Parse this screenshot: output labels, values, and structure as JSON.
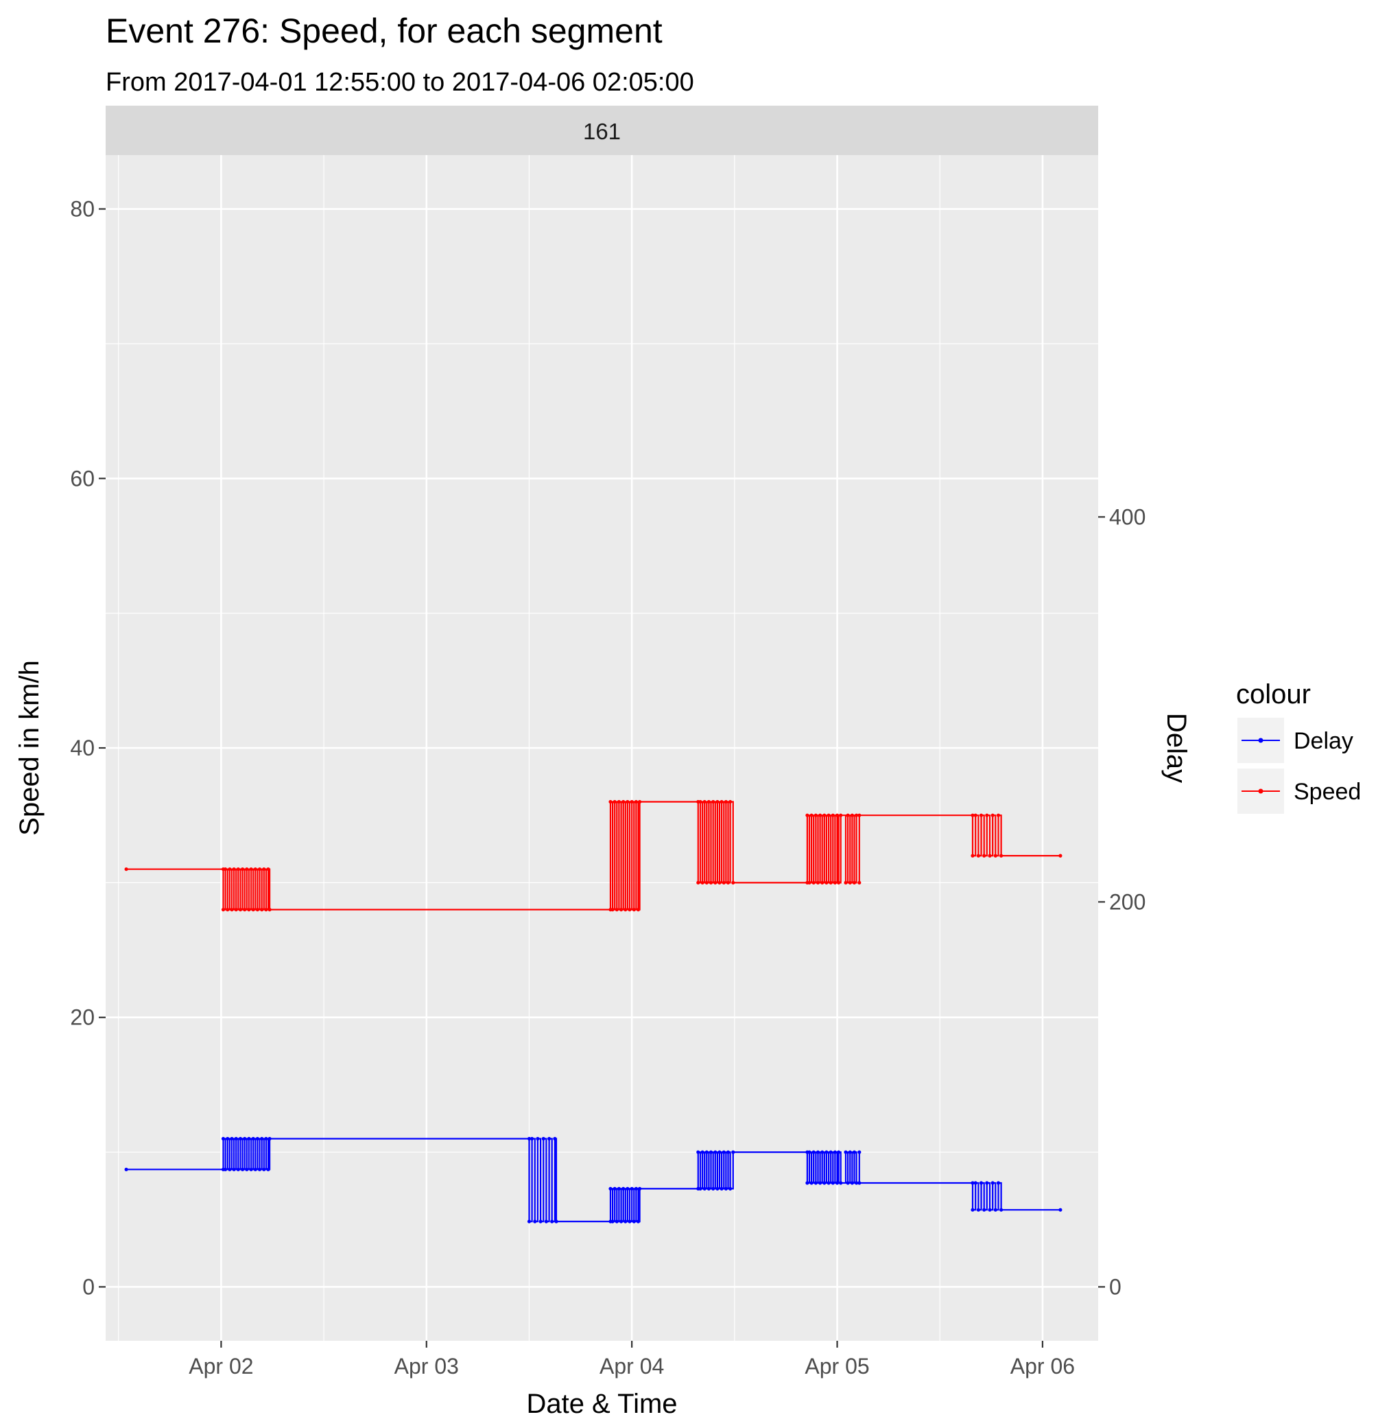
{
  "chart_data": {
    "type": "line",
    "step": true,
    "title": "Event 276: Speed, for each segment",
    "subtitle": "From 2017-04-01 12:55:00 to 2017-04-06 02:05:00",
    "facet_label": "161",
    "xlabel": "Date & Time",
    "ylabel": "Speed in km/h",
    "y2label": "Delay",
    "x_tick_labels": [
      "Apr 02",
      "Apr 03",
      "Apr 04",
      "Apr 05",
      "Apr 06"
    ],
    "x_ticks": [
      "2017-04-02 00:00",
      "2017-04-03 00:00",
      "2017-04-04 00:00",
      "2017-04-05 00:00",
      "2017-04-06 00:00"
    ],
    "xlim": [
      "2017-04-01 10:30",
      "2017-04-06 06:30"
    ],
    "ylim": [
      -4,
      84
    ],
    "y_ticks": [
      0,
      20,
      40,
      60,
      80
    ],
    "y2lim": [
      -28,
      588
    ],
    "y2_ticks": [
      0,
      200,
      400
    ],
    "grid": true,
    "legend": {
      "title": "colour",
      "position": "right",
      "entries": [
        "Delay",
        "Speed"
      ]
    },
    "colors": {
      "Delay": "#0000ff",
      "Speed": "#ff0000",
      "panel": "#ebebeb",
      "strip": "#d9d9d9",
      "grid": "#ffffff"
    },
    "series": [
      {
        "name": "Speed",
        "axis": "left",
        "points": [
          [
            "2017-04-01 12:55",
            31
          ],
          [
            "2017-04-02 00:15",
            31
          ],
          [
            "2017-04-02 00:15",
            28
          ],
          [
            "2017-04-02 00:30",
            31
          ],
          [
            "2017-04-02 00:45",
            28
          ],
          [
            "2017-04-02 01:00",
            31
          ],
          [
            "2017-04-02 01:15",
            28
          ],
          [
            "2017-04-02 01:30",
            31
          ],
          [
            "2017-04-02 01:45",
            28
          ],
          [
            "2017-04-02 02:00",
            31
          ],
          [
            "2017-04-02 02:15",
            28
          ],
          [
            "2017-04-02 02:30",
            31
          ],
          [
            "2017-04-02 02:45",
            28
          ],
          [
            "2017-04-02 03:00",
            31
          ],
          [
            "2017-04-02 03:15",
            28
          ],
          [
            "2017-04-02 03:30",
            31
          ],
          [
            "2017-04-02 03:45",
            28
          ],
          [
            "2017-04-02 04:00",
            31
          ],
          [
            "2017-04-02 04:15",
            28
          ],
          [
            "2017-04-02 04:30",
            31
          ],
          [
            "2017-04-02 04:45",
            28
          ],
          [
            "2017-04-02 05:00",
            31
          ],
          [
            "2017-04-02 05:15",
            28
          ],
          [
            "2017-04-02 05:30",
            31
          ],
          [
            "2017-04-02 05:40",
            28
          ],
          [
            "2017-04-03 21:30",
            28
          ],
          [
            "2017-04-03 21:30",
            36
          ],
          [
            "2017-04-03 21:45",
            28
          ],
          [
            "2017-04-03 22:00",
            36
          ],
          [
            "2017-04-03 22:15",
            28
          ],
          [
            "2017-04-03 22:30",
            36
          ],
          [
            "2017-04-03 22:45",
            28
          ],
          [
            "2017-04-03 23:00",
            36
          ],
          [
            "2017-04-03 23:15",
            28
          ],
          [
            "2017-04-03 23:30",
            36
          ],
          [
            "2017-04-03 23:45",
            28
          ],
          [
            "2017-04-04 00:00",
            36
          ],
          [
            "2017-04-04 00:15",
            28
          ],
          [
            "2017-04-04 00:30",
            36
          ],
          [
            "2017-04-04 00:45",
            28
          ],
          [
            "2017-04-04 00:55",
            36
          ],
          [
            "2017-04-04 07:45",
            36
          ],
          [
            "2017-04-04 07:45",
            30
          ],
          [
            "2017-04-04 08:00",
            36
          ],
          [
            "2017-04-04 08:15",
            30
          ],
          [
            "2017-04-04 08:30",
            36
          ],
          [
            "2017-04-04 08:45",
            30
          ],
          [
            "2017-04-04 09:00",
            36
          ],
          [
            "2017-04-04 09:15",
            30
          ],
          [
            "2017-04-04 09:30",
            36
          ],
          [
            "2017-04-04 09:45",
            30
          ],
          [
            "2017-04-04 10:00",
            36
          ],
          [
            "2017-04-04 10:15",
            30
          ],
          [
            "2017-04-04 10:30",
            36
          ],
          [
            "2017-04-04 10:45",
            30
          ],
          [
            "2017-04-04 11:00",
            36
          ],
          [
            "2017-04-04 11:15",
            30
          ],
          [
            "2017-04-04 11:30",
            36
          ],
          [
            "2017-04-04 11:50",
            30
          ],
          [
            "2017-04-04 20:30",
            30
          ],
          [
            "2017-04-04 20:30",
            35
          ],
          [
            "2017-04-04 20:45",
            30
          ],
          [
            "2017-04-04 21:00",
            35
          ],
          [
            "2017-04-04 21:15",
            30
          ],
          [
            "2017-04-04 21:30",
            35
          ],
          [
            "2017-04-04 21:45",
            30
          ],
          [
            "2017-04-04 22:00",
            35
          ],
          [
            "2017-04-04 22:15",
            30
          ],
          [
            "2017-04-04 22:30",
            35
          ],
          [
            "2017-04-04 22:45",
            30
          ],
          [
            "2017-04-04 23:00",
            35
          ],
          [
            "2017-04-04 23:15",
            30
          ],
          [
            "2017-04-04 23:30",
            35
          ],
          [
            "2017-04-04 23:45",
            30
          ],
          [
            "2017-04-05 00:00",
            35
          ],
          [
            "2017-04-05 00:10",
            30
          ],
          [
            "2017-04-05 00:25",
            35
          ],
          [
            "2017-04-05 01:00",
            30
          ],
          [
            "2017-04-05 01:15",
            35
          ],
          [
            "2017-04-05 01:30",
            30
          ],
          [
            "2017-04-05 01:45",
            35
          ],
          [
            "2017-04-05 02:00",
            30
          ],
          [
            "2017-04-05 02:15",
            35
          ],
          [
            "2017-04-05 02:35",
            30
          ],
          [
            "2017-04-05 02:35",
            35
          ],
          [
            "2017-04-05 15:50",
            35
          ],
          [
            "2017-04-05 15:50",
            32
          ],
          [
            "2017-04-05 16:10",
            35
          ],
          [
            "2017-04-05 16:30",
            32
          ],
          [
            "2017-04-05 16:50",
            35
          ],
          [
            "2017-04-05 17:10",
            32
          ],
          [
            "2017-04-05 17:30",
            35
          ],
          [
            "2017-04-05 17:50",
            32
          ],
          [
            "2017-04-05 18:10",
            35
          ],
          [
            "2017-04-05 18:30",
            32
          ],
          [
            "2017-04-05 18:50",
            35
          ],
          [
            "2017-04-05 19:10",
            32
          ],
          [
            "2017-04-06 02:05",
            32
          ]
        ]
      },
      {
        "name": "Delay",
        "axis": "right",
        "points": [
          [
            "2017-04-01 12:55",
            61
          ],
          [
            "2017-04-02 00:15",
            61
          ],
          [
            "2017-04-02 00:15",
            77
          ],
          [
            "2017-04-02 00:30",
            61
          ],
          [
            "2017-04-02 00:45",
            77
          ],
          [
            "2017-04-02 01:00",
            61
          ],
          [
            "2017-04-02 01:15",
            77
          ],
          [
            "2017-04-02 01:30",
            61
          ],
          [
            "2017-04-02 01:45",
            77
          ],
          [
            "2017-04-02 02:00",
            61
          ],
          [
            "2017-04-02 02:15",
            77
          ],
          [
            "2017-04-02 02:30",
            61
          ],
          [
            "2017-04-02 02:45",
            77
          ],
          [
            "2017-04-02 03:00",
            61
          ],
          [
            "2017-04-02 03:15",
            77
          ],
          [
            "2017-04-02 03:30",
            61
          ],
          [
            "2017-04-02 03:45",
            77
          ],
          [
            "2017-04-02 04:00",
            61
          ],
          [
            "2017-04-02 04:15",
            77
          ],
          [
            "2017-04-02 04:30",
            61
          ],
          [
            "2017-04-02 04:45",
            77
          ],
          [
            "2017-04-02 05:00",
            61
          ],
          [
            "2017-04-02 05:15",
            77
          ],
          [
            "2017-04-02 05:30",
            61
          ],
          [
            "2017-04-02 05:40",
            77
          ],
          [
            "2017-04-03 12:00",
            77
          ],
          [
            "2017-04-03 12:00",
            34
          ],
          [
            "2017-04-03 12:20",
            77
          ],
          [
            "2017-04-03 12:40",
            34
          ],
          [
            "2017-04-03 13:00",
            77
          ],
          [
            "2017-04-03 13:20",
            34
          ],
          [
            "2017-04-03 13:40",
            77
          ],
          [
            "2017-04-03 14:00",
            34
          ],
          [
            "2017-04-03 14:20",
            77
          ],
          [
            "2017-04-03 14:40",
            34
          ],
          [
            "2017-04-03 15:00",
            77
          ],
          [
            "2017-04-03 15:10",
            34
          ],
          [
            "2017-04-03 21:30",
            34
          ],
          [
            "2017-04-03 21:30",
            51
          ],
          [
            "2017-04-03 21:45",
            34
          ],
          [
            "2017-04-03 22:00",
            51
          ],
          [
            "2017-04-03 22:15",
            34
          ],
          [
            "2017-04-03 22:30",
            51
          ],
          [
            "2017-04-03 22:45",
            34
          ],
          [
            "2017-04-03 23:00",
            51
          ],
          [
            "2017-04-03 23:15",
            34
          ],
          [
            "2017-04-03 23:30",
            51
          ],
          [
            "2017-04-03 23:45",
            34
          ],
          [
            "2017-04-04 00:00",
            51
          ],
          [
            "2017-04-04 00:15",
            34
          ],
          [
            "2017-04-04 00:30",
            51
          ],
          [
            "2017-04-04 00:45",
            34
          ],
          [
            "2017-04-04 00:55",
            51
          ],
          [
            "2017-04-04 07:45",
            51
          ],
          [
            "2017-04-04 07:45",
            70
          ],
          [
            "2017-04-04 08:00",
            51
          ],
          [
            "2017-04-04 08:15",
            70
          ],
          [
            "2017-04-04 08:30",
            51
          ],
          [
            "2017-04-04 08:45",
            70
          ],
          [
            "2017-04-04 09:00",
            51
          ],
          [
            "2017-04-04 09:15",
            70
          ],
          [
            "2017-04-04 09:30",
            51
          ],
          [
            "2017-04-04 09:45",
            70
          ],
          [
            "2017-04-04 10:00",
            51
          ],
          [
            "2017-04-04 10:15",
            70
          ],
          [
            "2017-04-04 10:30",
            51
          ],
          [
            "2017-04-04 10:45",
            70
          ],
          [
            "2017-04-04 11:00",
            51
          ],
          [
            "2017-04-04 11:15",
            70
          ],
          [
            "2017-04-04 11:30",
            51
          ],
          [
            "2017-04-04 11:50",
            70
          ],
          [
            "2017-04-04 20:30",
            70
          ],
          [
            "2017-04-04 20:30",
            54
          ],
          [
            "2017-04-04 20:45",
            70
          ],
          [
            "2017-04-04 21:00",
            54
          ],
          [
            "2017-04-04 21:15",
            70
          ],
          [
            "2017-04-04 21:30",
            54
          ],
          [
            "2017-04-04 21:45",
            70
          ],
          [
            "2017-04-04 22:00",
            54
          ],
          [
            "2017-04-04 22:15",
            70
          ],
          [
            "2017-04-04 22:30",
            54
          ],
          [
            "2017-04-04 22:45",
            70
          ],
          [
            "2017-04-04 23:00",
            54
          ],
          [
            "2017-04-04 23:15",
            70
          ],
          [
            "2017-04-04 23:30",
            54
          ],
          [
            "2017-04-04 23:45",
            70
          ],
          [
            "2017-04-05 00:00",
            54
          ],
          [
            "2017-04-05 00:10",
            70
          ],
          [
            "2017-04-05 00:25",
            54
          ],
          [
            "2017-04-05 01:00",
            70
          ],
          [
            "2017-04-05 01:15",
            54
          ],
          [
            "2017-04-05 01:30",
            70
          ],
          [
            "2017-04-05 01:45",
            54
          ],
          [
            "2017-04-05 02:00",
            70
          ],
          [
            "2017-04-05 02:15",
            54
          ],
          [
            "2017-04-05 02:35",
            70
          ],
          [
            "2017-04-05 02:35",
            54
          ],
          [
            "2017-04-05 15:50",
            54
          ],
          [
            "2017-04-05 15:50",
            40
          ],
          [
            "2017-04-05 16:10",
            54
          ],
          [
            "2017-04-05 16:30",
            40
          ],
          [
            "2017-04-05 16:50",
            54
          ],
          [
            "2017-04-05 17:10",
            40
          ],
          [
            "2017-04-05 17:30",
            54
          ],
          [
            "2017-04-05 17:50",
            40
          ],
          [
            "2017-04-05 18:10",
            54
          ],
          [
            "2017-04-05 18:30",
            40
          ],
          [
            "2017-04-05 18:50",
            54
          ],
          [
            "2017-04-05 19:10",
            40
          ],
          [
            "2017-04-06 02:05",
            40
          ]
        ]
      }
    ]
  }
}
